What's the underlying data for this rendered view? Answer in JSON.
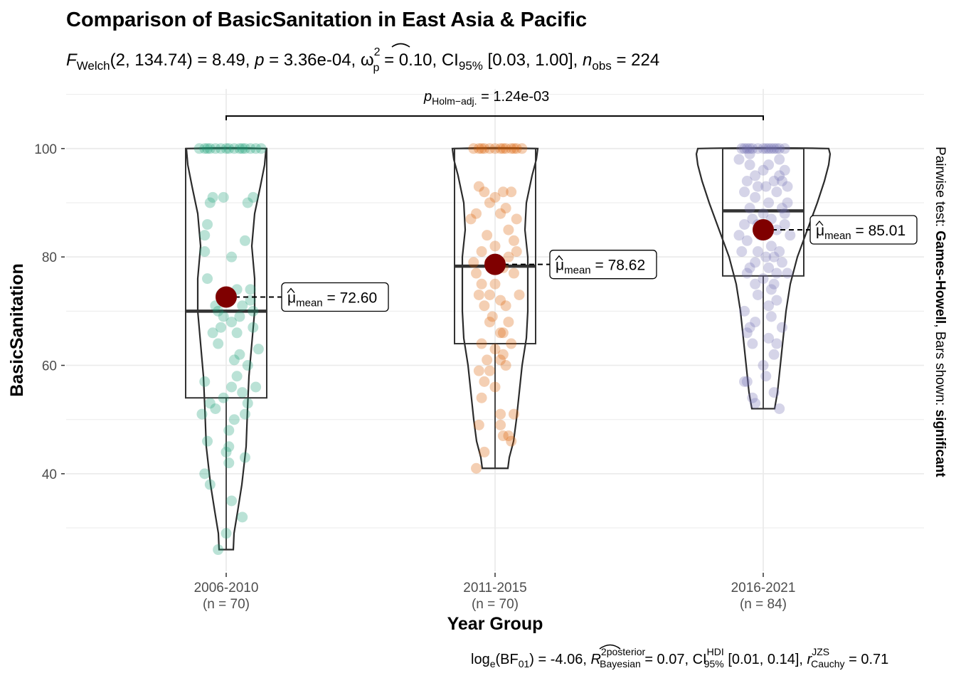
{
  "chart_data": {
    "type": "violin-box-scatter",
    "title": "Comparison of BasicSanitation in East Asia & Pacific",
    "subtitle": {
      "F_label": "F",
      "F_sub": "Welch",
      "F_args": "(2, 134.74)",
      "F_val": " = 8.49, ",
      "p_label": "p",
      "p_val": " = 3.36e-04, ",
      "omega_sym": "ω",
      "omega_sup": "2",
      "omega_sub": "p",
      "omega_val": " = 0.10, CI",
      "ci_sub": "95%",
      "ci_val": " [0.03, 1.00], ",
      "n_label": "n",
      "n_sub": "obs",
      "n_val": " = 224"
    },
    "xlabel": "Year Group",
    "ylabel": "BasicSanitation",
    "ylim": [
      22,
      111
    ],
    "yticks": [
      40,
      60,
      80,
      100
    ],
    "grid": true,
    "categories": [
      {
        "name": "2006-2010",
        "n_label": "(n = 70)",
        "color": "#1b9e77",
        "mean": 72.6,
        "mean_label": "72.60",
        "median": 70.0,
        "q1": 54.0,
        "q3": 100.0,
        "min": 26.0,
        "max": 100.0
      },
      {
        "name": "2011-2015",
        "n_label": "(n = 70)",
        "color": "#d95f02",
        "mean": 78.62,
        "mean_label": "78.62",
        "median": 78.3,
        "q1": 64.0,
        "q3": 100.0,
        "min": 41.0,
        "max": 100.0
      },
      {
        "name": "2016-2021",
        "n_label": "(n = 84)",
        "color": "#7570b3",
        "mean": 85.01,
        "mean_label": "85.01",
        "median": 88.5,
        "q1": 76.5,
        "q3": 100.0,
        "min": 52.0,
        "max": 100.0
      }
    ],
    "mean_label_prefix": "μ",
    "mean_label_sub": "mean",
    "mean_label_eq": " = ",
    "pairwise": {
      "from": "2006-2010",
      "to": "2016-2021",
      "y": 106,
      "label_p": "p",
      "label_sub": "Holm−adj.",
      "label_val": " = 1.24e-03"
    },
    "points": [
      [
        [
          -0.08,
          100
        ],
        [
          -0.06,
          100
        ],
        [
          -0.04,
          100
        ],
        [
          -0.02,
          100
        ],
        [
          0.0,
          100
        ],
        [
          0.03,
          100
        ],
        [
          0.05,
          100
        ],
        [
          0.07,
          100
        ],
        [
          0.09,
          100
        ],
        [
          0.11,
          100
        ],
        [
          -0.1,
          100
        ],
        [
          0.13,
          100
        ],
        [
          0.01,
          100
        ],
        [
          -0.07,
          100
        ],
        [
          0.06,
          100
        ],
        [
          -0.05,
          91
        ],
        [
          -0.01,
          91
        ],
        [
          0.1,
          91
        ],
        [
          0.08,
          90
        ],
        [
          -0.06,
          90
        ],
        [
          -0.07,
          86
        ],
        [
          -0.08,
          84
        ],
        [
          0.07,
          83
        ],
        [
          -0.08,
          81
        ],
        [
          0.02,
          80
        ],
        [
          -0.07,
          76
        ],
        [
          0.04,
          74
        ],
        [
          -0.02,
          73
        ],
        [
          0.09,
          72
        ],
        [
          0.06,
          71
        ],
        [
          -0.03,
          70
        ],
        [
          0.1,
          70
        ],
        [
          -0.01,
          69
        ],
        [
          0.05,
          69
        ],
        [
          0.02,
          68
        ],
        [
          -0.02,
          67
        ],
        [
          0.04,
          66
        ],
        [
          0.1,
          67
        ],
        [
          -0.05,
          66
        ],
        [
          -0.03,
          64
        ],
        [
          0.05,
          62
        ],
        [
          0.03,
          61
        ],
        [
          0.08,
          60
        ],
        [
          0.04,
          58
        ],
        [
          -0.08,
          57
        ],
        [
          0.02,
          56
        ],
        [
          0.11,
          56
        ],
        [
          0.06,
          55
        ],
        [
          -0.01,
          54
        ],
        [
          -0.06,
          53
        ],
        [
          -0.04,
          52
        ],
        [
          0.07,
          51
        ],
        [
          0.03,
          50
        ],
        [
          0.01,
          48
        ],
        [
          -0.07,
          46
        ],
        [
          0.01,
          45
        ],
        [
          0.0,
          44
        ],
        [
          0.01,
          42
        ],
        [
          0.07,
          43
        ],
        [
          -0.08,
          40
        ],
        [
          -0.06,
          38
        ],
        [
          0.02,
          35
        ],
        [
          0.06,
          32
        ],
        [
          0.0,
          29
        ],
        [
          -0.03,
          26
        ],
        [
          -0.09,
          51
        ],
        [
          0.09,
          74
        ],
        [
          -0.04,
          71
        ],
        [
          0.12,
          63
        ],
        [
          0.08,
          53
        ]
      ],
      [
        [
          -0.08,
          100
        ],
        [
          -0.06,
          100
        ],
        [
          -0.04,
          100
        ],
        [
          -0.02,
          100
        ],
        [
          0.0,
          100
        ],
        [
          0.02,
          100
        ],
        [
          0.04,
          100
        ],
        [
          0.06,
          100
        ],
        [
          0.08,
          100
        ],
        [
          0.1,
          100
        ],
        [
          -0.05,
          100
        ],
        [
          0.03,
          100
        ],
        [
          0.07,
          100
        ],
        [
          -0.06,
          93
        ],
        [
          -0.04,
          92
        ],
        [
          0.03,
          92
        ],
        [
          0.06,
          92
        ],
        [
          0.0,
          91
        ],
        [
          -0.02,
          90
        ],
        [
          0.04,
          89
        ],
        [
          -0.07,
          88
        ],
        [
          0.02,
          88
        ],
        [
          0.08,
          87
        ],
        [
          0.05,
          85
        ],
        [
          -0.03,
          84
        ],
        [
          0.07,
          83
        ],
        [
          0.0,
          82
        ],
        [
          -0.05,
          81
        ],
        [
          0.05,
          80
        ],
        [
          -0.08,
          79
        ],
        [
          -0.02,
          79
        ],
        [
          0.03,
          78
        ],
        [
          -0.07,
          77
        ],
        [
          0.07,
          77
        ],
        [
          -0.05,
          75
        ],
        [
          0.0,
          75
        ],
        [
          -0.06,
          73
        ],
        [
          -0.02,
          73
        ],
        [
          0.02,
          72
        ],
        [
          -0.04,
          71
        ],
        [
          0.04,
          71
        ],
        [
          -0.01,
          69
        ],
        [
          0.05,
          68
        ],
        [
          -0.02,
          68
        ],
        [
          0.02,
          66
        ],
        [
          0.03,
          66
        ],
        [
          -0.05,
          64
        ],
        [
          0.06,
          64
        ],
        [
          0.0,
          63
        ],
        [
          0.03,
          62
        ],
        [
          0.02,
          61
        ],
        [
          0.04,
          60
        ],
        [
          -0.02,
          59
        ],
        [
          -0.06,
          59
        ],
        [
          -0.04,
          57
        ],
        [
          0.0,
          56
        ],
        [
          -0.05,
          54
        ],
        [
          0.02,
          51
        ],
        [
          0.07,
          51
        ],
        [
          0.02,
          49
        ],
        [
          -0.06,
          49
        ],
        [
          0.05,
          47
        ],
        [
          0.03,
          47
        ],
        [
          0.06,
          46
        ],
        [
          -0.04,
          44
        ],
        [
          -0.07,
          41
        ],
        [
          0.08,
          81
        ],
        [
          -0.09,
          87
        ],
        [
          0.09,
          73
        ],
        [
          -0.03,
          61
        ]
      ],
      [
        [
          -0.08,
          100
        ],
        [
          -0.06,
          100
        ],
        [
          -0.04,
          100
        ],
        [
          -0.02,
          100
        ],
        [
          0.0,
          100
        ],
        [
          0.02,
          100
        ],
        [
          0.04,
          100
        ],
        [
          0.06,
          100
        ],
        [
          0.08,
          100
        ],
        [
          0.05,
          100
        ],
        [
          -0.05,
          100
        ],
        [
          0.01,
          100
        ],
        [
          -0.07,
          100
        ],
        [
          0.03,
          100
        ],
        [
          0.06,
          98
        ],
        [
          -0.05,
          97
        ],
        [
          0.02,
          97
        ],
        [
          0.08,
          96
        ],
        [
          0.0,
          96
        ],
        [
          -0.03,
          95
        ],
        [
          0.04,
          94
        ],
        [
          0.07,
          94
        ],
        [
          -0.06,
          94
        ],
        [
          0.01,
          93
        ],
        [
          -0.02,
          93
        ],
        [
          0.09,
          93
        ],
        [
          -0.07,
          92
        ],
        [
          0.05,
          92
        ],
        [
          -0.03,
          91
        ],
        [
          0.02,
          90
        ],
        [
          -0.05,
          89
        ],
        [
          0.07,
          89
        ],
        [
          0.0,
          88
        ],
        [
          -0.04,
          87
        ],
        [
          0.03,
          87
        ],
        [
          0.08,
          86
        ],
        [
          -0.07,
          86
        ],
        [
          0.05,
          85
        ],
        [
          -0.01,
          84
        ],
        [
          0.1,
          84
        ],
        [
          -0.06,
          83
        ],
        [
          0.03,
          82
        ],
        [
          -0.02,
          81
        ],
        [
          0.06,
          81
        ],
        [
          -0.08,
          81
        ],
        [
          0.01,
          80
        ],
        [
          0.04,
          80
        ],
        [
          -0.03,
          79
        ],
        [
          0.07,
          79
        ],
        [
          -0.05,
          78
        ],
        [
          0.02,
          78
        ],
        [
          0.05,
          77
        ],
        [
          -0.06,
          77
        ],
        [
          0.0,
          76
        ],
        [
          0.04,
          75
        ],
        [
          -0.03,
          75
        ],
        [
          0.03,
          74
        ],
        [
          -0.02,
          73
        ],
        [
          0.05,
          72
        ],
        [
          -0.07,
          70
        ],
        [
          0.03,
          69
        ],
        [
          -0.05,
          67
        ],
        [
          0.07,
          67
        ],
        [
          -0.06,
          66
        ],
        [
          0.02,
          65
        ],
        [
          0.05,
          64
        ],
        [
          -0.04,
          64
        ],
        [
          0.0,
          60
        ],
        [
          -0.07,
          57
        ],
        [
          -0.06,
          57
        ],
        [
          -0.04,
          54
        ],
        [
          0.04,
          55
        ],
        [
          -0.03,
          53
        ],
        [
          0.06,
          52
        ],
        [
          0.08,
          88
        ],
        [
          -0.09,
          98
        ],
        [
          0.09,
          90
        ],
        [
          -0.09,
          84
        ],
        [
          0.02,
          71
        ],
        [
          -0.02,
          86
        ],
        [
          0.06,
          95
        ],
        [
          -0.05,
          99
        ],
        [
          0.04,
          62
        ],
        [
          -0.03,
          68
        ],
        [
          0.09,
          77
        ],
        [
          0.01,
          58
        ]
      ]
    ],
    "bayes": {
      "log_lbl": "log",
      "log_sub": "e",
      "bf_open": "(BF",
      "bf_sub": "01",
      "bf_val": ") = -4.06, ",
      "r_sym": "R",
      "r_sup": "2",
      "r_sup2": "posterior",
      "r_sub": "Bayesian",
      "r_val": " = 0.07, CI",
      "ci_sup": "HDI",
      "ci_sub": "95%",
      "ci_val": " [0.01, 0.14], ",
      "rc_sym": "r",
      "rc_sup": "JZS",
      "rc_sub": "Cauchy",
      "rc_val": " = 0.71"
    },
    "side": {
      "prefix": "Pairwise test: ",
      "test": "Games-Howell",
      "mid": ", Bars shown: ",
      "shown": "significant"
    }
  },
  "colors": {
    "mean_point": "#7f0000",
    "grid": "#ebebeb",
    "line": "#333333"
  }
}
